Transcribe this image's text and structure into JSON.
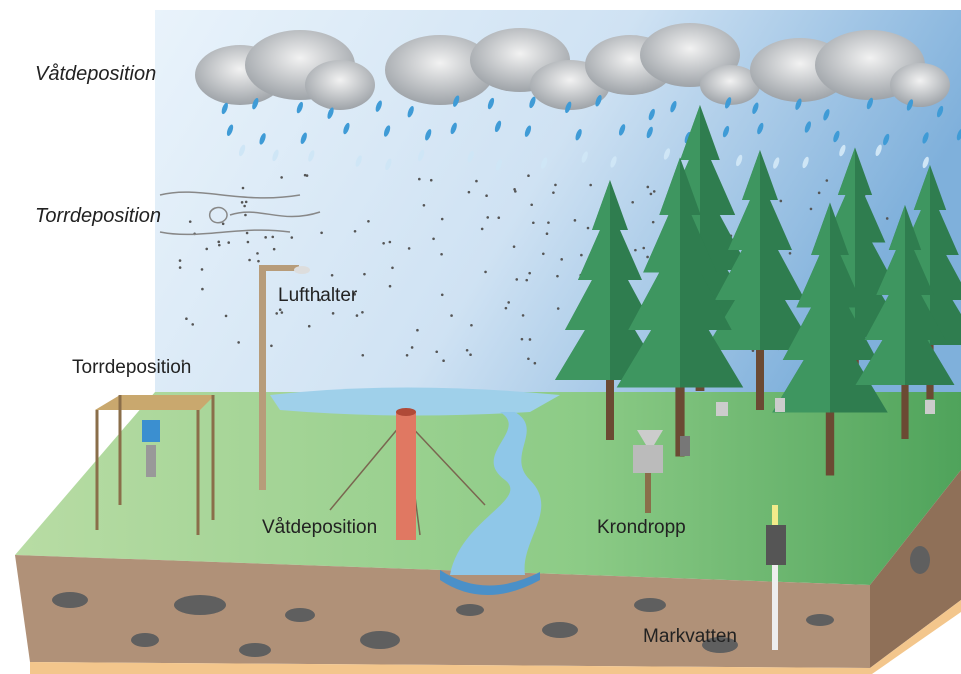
{
  "processes": [
    {
      "label": "Våtdeposition"
    },
    {
      "label": "Torrdeposition"
    }
  ],
  "instruments": [
    {
      "label": "Lufthalter"
    },
    {
      "label": "Torrdeposition"
    },
    {
      "label": "Våtdeposition"
    },
    {
      "label": "Krondropp"
    },
    {
      "label": "Markvatten"
    }
  ]
}
